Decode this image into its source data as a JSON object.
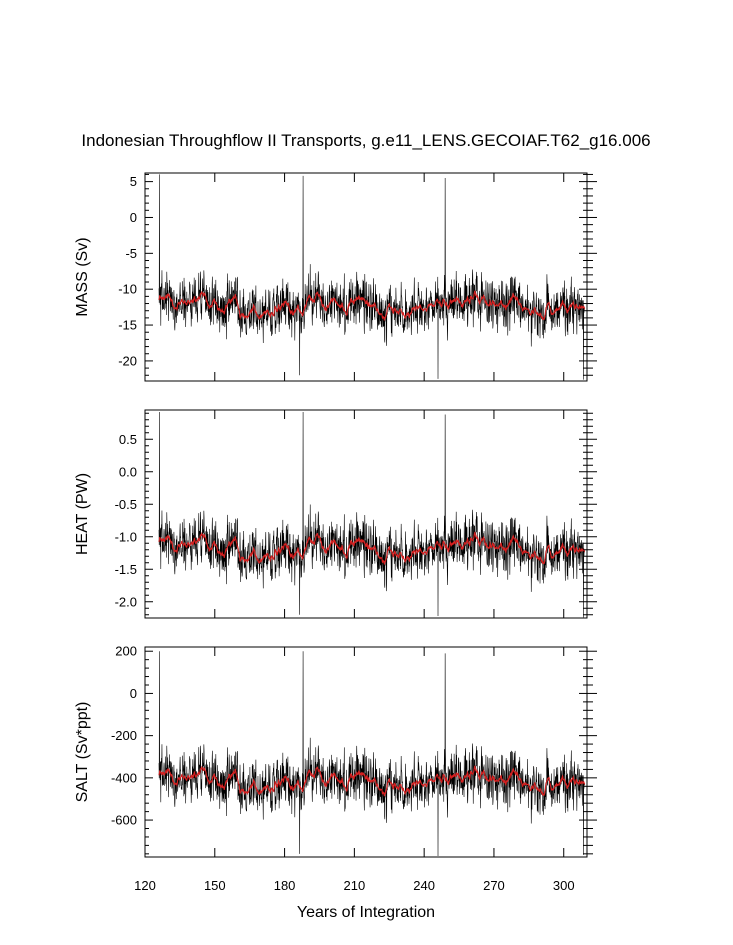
{
  "chart_data": {
    "type": "line",
    "title": "Indonesian Throughflow II Transports, g.e11_LENS.GECOIAF.T62_g16.006",
    "xlabel": "Years of Integration",
    "xlim": [
      120,
      310
    ],
    "xticks": [
      120,
      150,
      180,
      210,
      240,
      270,
      300
    ],
    "x_start": 126,
    "x_end": 309,
    "panels": [
      {
        "id": "mass",
        "ylabel": "MASS (Sv)",
        "ylim": [
          -22.8,
          6.2
        ],
        "yticks": [
          5,
          0,
          -5,
          -10,
          -15,
          -20
        ],
        "ytick_labels": [
          "5",
          "0",
          "-5",
          "-10",
          "-15",
          "-20"
        ],
        "mean": -12.3,
        "noise": 3.1,
        "cycle_amp": 1.6,
        "spikes": [
          [
            126.2,
            6.0
          ],
          [
            188.0,
            5.8
          ],
          [
            249.0,
            5.5
          ],
          [
            186.5,
            -22.0
          ],
          [
            246.0,
            -22.5
          ],
          [
            308.5,
            -22.6
          ]
        ],
        "series": [
          {
            "name": "raw",
            "color": "#000000"
          },
          {
            "name": "smoothed",
            "color": "#d62020"
          }
        ]
      },
      {
        "id": "heat",
        "ylabel": "HEAT (PW)",
        "ylim": [
          -2.25,
          0.95
        ],
        "yticks": [
          0.5,
          0.0,
          -0.5,
          -1.0,
          -1.5,
          -2.0
        ],
        "ytick_labels": [
          "0.5",
          "0.0",
          "-0.5",
          "-1.0",
          "-1.5",
          "-2.0"
        ],
        "mean": -1.18,
        "noise": 0.36,
        "cycle_amp": 0.2,
        "spikes": [
          [
            126.2,
            0.92
          ],
          [
            188.0,
            0.92
          ],
          [
            249.0,
            0.88
          ],
          [
            186.5,
            -2.2
          ],
          [
            246.0,
            -2.22
          ],
          [
            308.5,
            -2.24
          ]
        ],
        "series": [
          {
            "name": "raw",
            "color": "#000000"
          },
          {
            "name": "smoothed",
            "color": "#d62020"
          }
        ]
      },
      {
        "id": "salt",
        "ylabel": "SALT (Sv*ppt)",
        "ylim": [
          -775,
          220
        ],
        "yticks": [
          200,
          0,
          -200,
          -400,
          -600
        ],
        "ytick_labels": [
          "200",
          "0",
          "-200",
          "-400",
          "-600"
        ],
        "mean": -415,
        "noise": 110,
        "cycle_amp": 55,
        "spikes": [
          [
            126.2,
            200
          ],
          [
            188.0,
            200
          ],
          [
            249.0,
            190
          ],
          [
            186.5,
            -760
          ],
          [
            246.0,
            -770
          ],
          [
            308.5,
            -765
          ]
        ],
        "series": [
          {
            "name": "raw",
            "color": "#000000"
          },
          {
            "name": "smoothed",
            "color": "#d62020"
          }
        ]
      }
    ]
  }
}
